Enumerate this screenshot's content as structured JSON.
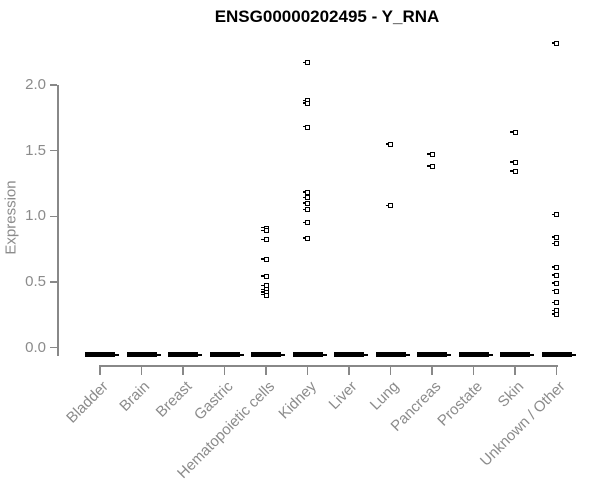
{
  "title": "ENSG00000202495 - Y_RNA",
  "colors": {
    "background": "#ffffff",
    "point": "#000000",
    "axis": "#888888",
    "tick_label": "#8b8b8b",
    "title": "#000000"
  },
  "chart_data": {
    "type": "scatter",
    "title": "ENSG00000202495 - Y_RNA",
    "xlabel": "",
    "ylabel": "Expression",
    "ylim": [
      0,
      2.4
    ],
    "yticks": [
      "0.0",
      "0.5",
      "1.0",
      "1.5",
      "2.0"
    ],
    "grid": false,
    "legend": false,
    "point_style": "small open black square",
    "zero_cluster_note": "every category shows a dense horizontal cluster of overlapping points at expression 0",
    "categories": [
      "Bladder",
      "Brain",
      "Breast",
      "Gastric",
      "Hematopoietic cells",
      "Kidney",
      "Liver",
      "Lung",
      "Pancreas",
      "Prostate",
      "Skin",
      "Unknown / Other"
    ],
    "series": [
      {
        "category": "Bladder",
        "zero_cluster": true,
        "nonzero_values": []
      },
      {
        "category": "Brain",
        "zero_cluster": true,
        "nonzero_values": []
      },
      {
        "category": "Breast",
        "zero_cluster": true,
        "nonzero_values": []
      },
      {
        "category": "Gastric",
        "zero_cluster": true,
        "nonzero_values": []
      },
      {
        "category": "Hematopoietic cells",
        "zero_cluster": true,
        "nonzero_values": [
          0.91,
          0.89,
          0.82,
          0.67,
          0.54,
          0.47,
          0.44,
          0.42,
          0.4
        ]
      },
      {
        "category": "Kidney",
        "zero_cluster": true,
        "nonzero_values": [
          2.17,
          1.88,
          1.86,
          1.68,
          1.18,
          1.14,
          1.1,
          1.05,
          0.95,
          0.83
        ]
      },
      {
        "category": "Liver",
        "zero_cluster": true,
        "nonzero_values": []
      },
      {
        "category": "Lung",
        "zero_cluster": true,
        "nonzero_values": [
          1.55,
          1.08
        ]
      },
      {
        "category": "Pancreas",
        "zero_cluster": true,
        "nonzero_values": [
          1.47,
          1.38
        ]
      },
      {
        "category": "Prostate",
        "zero_cluster": true,
        "nonzero_values": []
      },
      {
        "category": "Skin",
        "zero_cluster": true,
        "nonzero_values": [
          1.64,
          1.41,
          1.34
        ]
      },
      {
        "category": "Unknown / Other",
        "zero_cluster": true,
        "nonzero_values": [
          2.32,
          1.01,
          0.84,
          0.79,
          0.61,
          0.55,
          0.49,
          0.43,
          0.34,
          0.28,
          0.25
        ]
      }
    ]
  }
}
